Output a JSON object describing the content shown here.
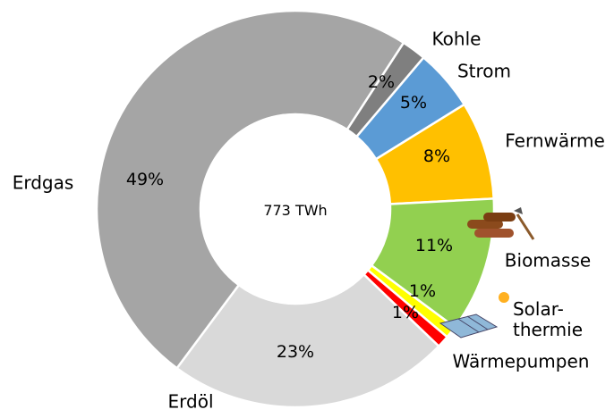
{
  "chart_data": {
    "type": "donut",
    "center_label": "773 TWh",
    "categories": [
      "Kohle",
      "Strom",
      "Fernwärme",
      "Biomasse",
      "Solar-\nthermie",
      "Wärmepumpen",
      "Erdöl",
      "Erdgas"
    ],
    "values": [
      2,
      5,
      8,
      11,
      1,
      1,
      23,
      49
    ],
    "value_labels": [
      "2%",
      "5%",
      "8%",
      "11%",
      "1%",
      "1%",
      "23%",
      "49%"
    ],
    "colors": [
      "#7f7f7f",
      "#5b9bd5",
      "#ffc000",
      "#92d050",
      "#ffff00",
      "#ff0000",
      "#d9d9d9",
      "#a5a5a5"
    ]
  }
}
